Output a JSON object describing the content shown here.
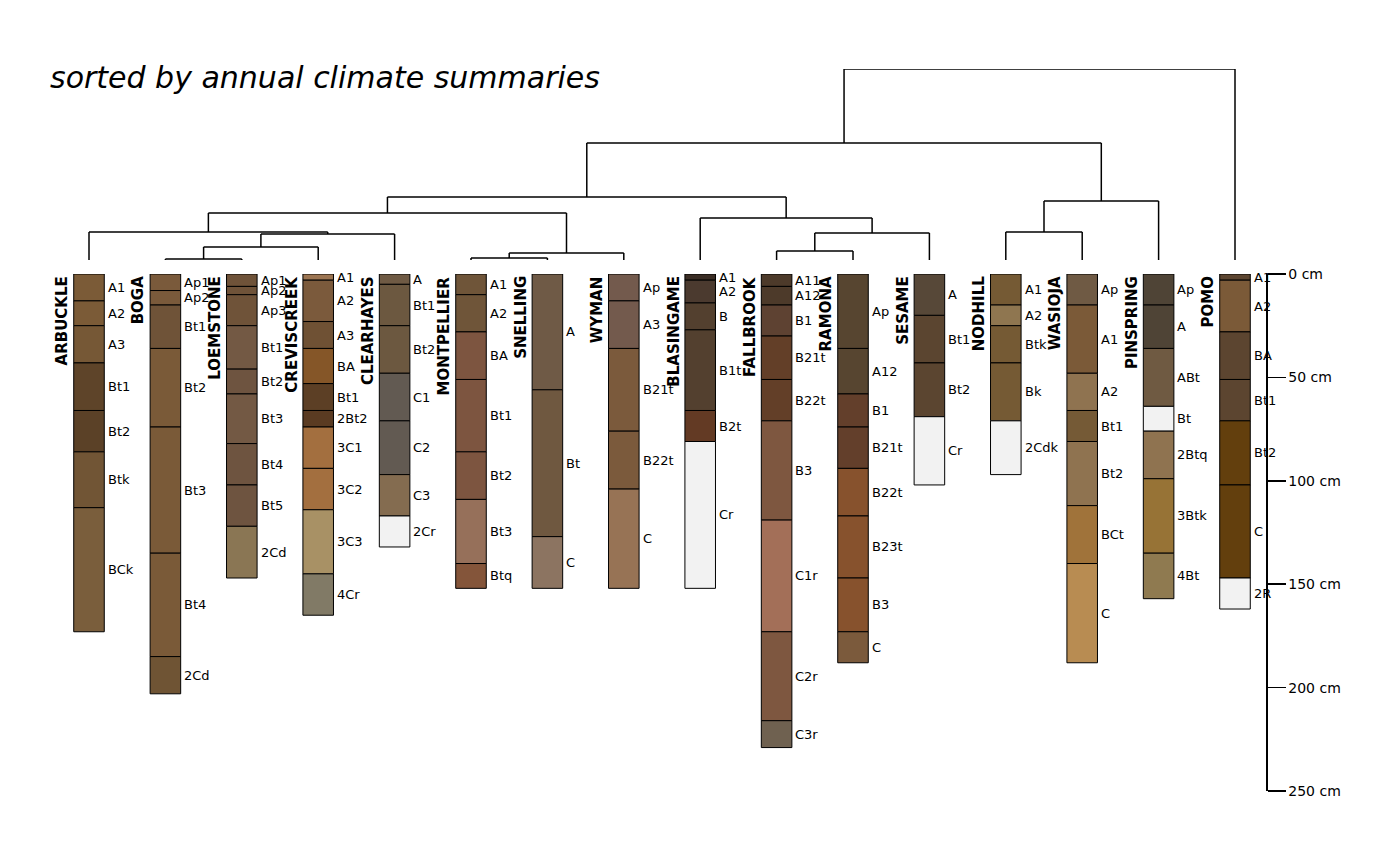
{
  "chart_data": {
    "type": "soil_profiles",
    "title": "sorted by annual climate summaries",
    "ylim": [
      250,
      0
    ],
    "yticks": [
      {
        "value": 0,
        "label": "0 cm"
      },
      {
        "value": 50,
        "label": "50 cm"
      },
      {
        "value": 100,
        "label": "100 cm"
      },
      {
        "value": 150,
        "label": "150 cm"
      },
      {
        "value": 200,
        "label": "200 cm"
      },
      {
        "value": 250,
        "label": "250 cm"
      }
    ],
    "tick_labels": "y",
    "grid": false,
    "profiles": [
      {
        "name": "ARBUCKLE",
        "horizons": [
          {
            "name": "A1",
            "top": 0,
            "bottom": 13,
            "color": "#7b5b37"
          },
          {
            "name": "A2",
            "top": 13,
            "bottom": 25,
            "color": "#7b5b37"
          },
          {
            "name": "A3",
            "top": 25,
            "bottom": 43,
            "color": "#765836"
          },
          {
            "name": "Bt1",
            "top": 43,
            "bottom": 66,
            "color": "#5e4429"
          },
          {
            "name": "Bt2",
            "top": 66,
            "bottom": 86,
            "color": "#5b4127"
          },
          {
            "name": "Btk",
            "top": 86,
            "bottom": 113,
            "color": "#715535"
          },
          {
            "name": "BCk",
            "top": 113,
            "bottom": 173,
            "color": "#7a5e3c"
          }
        ]
      },
      {
        "name": "BOGA",
        "horizons": [
          {
            "name": "Ap1",
            "top": 0,
            "bottom": 8,
            "color": "#7a5a3b"
          },
          {
            "name": "Ap2",
            "top": 8,
            "bottom": 15,
            "color": "#7a5a3b"
          },
          {
            "name": "Bt1",
            "top": 15,
            "bottom": 36,
            "color": "#6f5338"
          },
          {
            "name": "Bt2",
            "top": 36,
            "bottom": 74,
            "color": "#7a5a38"
          },
          {
            "name": "Bt3",
            "top": 74,
            "bottom": 135,
            "color": "#7a5a38"
          },
          {
            "name": "Bt4",
            "top": 135,
            "bottom": 185,
            "color": "#7a5a38"
          },
          {
            "name": "2Cd",
            "top": 185,
            "bottom": 203,
            "color": "#6f5434"
          }
        ]
      },
      {
        "name": "LOEMSTONE",
        "horizons": [
          {
            "name": "Ap1",
            "top": 0,
            "bottom": 6,
            "color": "#6f5339"
          },
          {
            "name": "Ap2",
            "top": 6,
            "bottom": 10,
            "color": "#6f5339"
          },
          {
            "name": "Ap3",
            "top": 10,
            "bottom": 25,
            "color": "#6f5339"
          },
          {
            "name": "Bt1",
            "top": 25,
            "bottom": 46,
            "color": "#735944"
          },
          {
            "name": "Bt2",
            "top": 46,
            "bottom": 58,
            "color": "#6e5440"
          },
          {
            "name": "Bt3",
            "top": 58,
            "bottom": 82,
            "color": "#735944"
          },
          {
            "name": "Bt4",
            "top": 82,
            "bottom": 102,
            "color": "#6e5440"
          },
          {
            "name": "Bt5",
            "top": 102,
            "bottom": 122,
            "color": "#6e5440"
          },
          {
            "name": "2Cd",
            "top": 122,
            "bottom": 147,
            "color": "#8a7654"
          }
        ]
      },
      {
        "name": "CREVISCREEK",
        "horizons": [
          {
            "name": "A1",
            "top": 0,
            "bottom": 3,
            "color": "#9c7552"
          },
          {
            "name": "A2",
            "top": 3,
            "bottom": 23,
            "color": "#7b5a3c"
          },
          {
            "name": "A3",
            "top": 23,
            "bottom": 36,
            "color": "#6f5134"
          },
          {
            "name": "BA",
            "top": 36,
            "bottom": 53,
            "color": "#855628"
          },
          {
            "name": "Bt1",
            "top": 53,
            "bottom": 66,
            "color": "#5c3f25"
          },
          {
            "name": "2Bt2",
            "top": 66,
            "bottom": 74,
            "color": "#5a3b22"
          },
          {
            "name": "3C1",
            "top": 74,
            "bottom": 94,
            "color": "#a36f3f"
          },
          {
            "name": "3C2",
            "top": 94,
            "bottom": 114,
            "color": "#a36f3f"
          },
          {
            "name": "3C3",
            "top": 114,
            "bottom": 145,
            "color": "#a89165"
          },
          {
            "name": "4Cr",
            "top": 145,
            "bottom": 165,
            "color": "#817a66"
          }
        ]
      },
      {
        "name": "CLEARHAYES",
        "horizons": [
          {
            "name": "A",
            "top": 0,
            "bottom": 5,
            "color": "#6f5a44"
          },
          {
            "name": "Bt1",
            "top": 5,
            "bottom": 25,
            "color": "#6c5840"
          },
          {
            "name": "Bt2",
            "top": 25,
            "bottom": 48,
            "color": "#6c5840"
          },
          {
            "name": "C1",
            "top": 48,
            "bottom": 71,
            "color": "#625a52"
          },
          {
            "name": "C2",
            "top": 71,
            "bottom": 97,
            "color": "#625a52"
          },
          {
            "name": "C3",
            "top": 97,
            "bottom": 117,
            "color": "#846c50"
          },
          {
            "name": "2Cr",
            "top": 117,
            "bottom": 132,
            "color": "#f2f2f2"
          }
        ]
      },
      {
        "name": "MONTPELLIER",
        "horizons": [
          {
            "name": "A1",
            "top": 0,
            "bottom": 10,
            "color": "#6f5539"
          },
          {
            "name": "A2",
            "top": 10,
            "bottom": 28,
            "color": "#6f5539"
          },
          {
            "name": "BA",
            "top": 28,
            "bottom": 51,
            "color": "#7d5540"
          },
          {
            "name": "Bt1",
            "top": 51,
            "bottom": 86,
            "color": "#7d5540"
          },
          {
            "name": "Bt2",
            "top": 86,
            "bottom": 109,
            "color": "#7d5540"
          },
          {
            "name": "Bt3",
            "top": 109,
            "bottom": 140,
            "color": "#96705a"
          },
          {
            "name": "Btq",
            "top": 140,
            "bottom": 152,
            "color": "#84553a"
          }
        ]
      },
      {
        "name": "SNELLING",
        "horizons": [
          {
            "name": "A",
            "top": 0,
            "bottom": 56,
            "color": "#6f5a46"
          },
          {
            "name": "Bt",
            "top": 56,
            "bottom": 127,
            "color": "#6f5840"
          },
          {
            "name": "C",
            "top": 127,
            "bottom": 152,
            "color": "#8c7461"
          }
        ]
      },
      {
        "name": "WYMAN",
        "horizons": [
          {
            "name": "Ap",
            "top": 0,
            "bottom": 13,
            "color": "#735a4d"
          },
          {
            "name": "A3",
            "top": 13,
            "bottom": 36,
            "color": "#735a4d"
          },
          {
            "name": "B21t",
            "top": 36,
            "bottom": 76,
            "color": "#7b5a3c"
          },
          {
            "name": "B22t",
            "top": 76,
            "bottom": 104,
            "color": "#7b5a3c"
          },
          {
            "name": "C",
            "top": 104,
            "bottom": 152,
            "color": "#977355"
          }
        ]
      },
      {
        "name": "BLASINGAME",
        "horizons": [
          {
            "name": "A1",
            "top": 0,
            "bottom": 3,
            "color": "#3a2d24"
          },
          {
            "name": "A2",
            "top": 3,
            "bottom": 14,
            "color": "#4b3a2f"
          },
          {
            "name": "B",
            "top": 14,
            "bottom": 27,
            "color": "#53402f"
          },
          {
            "name": "B1t",
            "top": 27,
            "bottom": 66,
            "color": "#53402f"
          },
          {
            "name": "B2t",
            "top": 66,
            "bottom": 81,
            "color": "#633a24"
          },
          {
            "name": "Cr",
            "top": 81,
            "bottom": 152,
            "color": "#f2f2f2"
          }
        ]
      },
      {
        "name": "FALLBROOK",
        "horizons": [
          {
            "name": "A11",
            "top": 0,
            "bottom": 6,
            "color": "#4d3a2a"
          },
          {
            "name": "A12",
            "top": 6,
            "bottom": 15,
            "color": "#4d3a2a"
          },
          {
            "name": "B1",
            "top": 15,
            "bottom": 30,
            "color": "#5e4232"
          },
          {
            "name": "B21t",
            "top": 30,
            "bottom": 51,
            "color": "#633f28"
          },
          {
            "name": "B22t",
            "top": 51,
            "bottom": 71,
            "color": "#633f28"
          },
          {
            "name": "B3",
            "top": 71,
            "bottom": 119,
            "color": "#7e5740"
          },
          {
            "name": "C1r",
            "top": 119,
            "bottom": 173,
            "color": "#a36f58"
          },
          {
            "name": "C2r",
            "top": 173,
            "bottom": 216,
            "color": "#7e5740"
          },
          {
            "name": "C3r",
            "top": 216,
            "bottom": 229,
            "color": "#6f6150"
          }
        ]
      },
      {
        "name": "RAMONA",
        "horizons": [
          {
            "name": "Ap",
            "top": 0,
            "bottom": 36,
            "color": "#574530"
          },
          {
            "name": "A12",
            "top": 36,
            "bottom": 58,
            "color": "#574530"
          },
          {
            "name": "B1",
            "top": 58,
            "bottom": 74,
            "color": "#633f2b"
          },
          {
            "name": "B21t",
            "top": 74,
            "bottom": 94,
            "color": "#633f2b"
          },
          {
            "name": "B22t",
            "top": 94,
            "bottom": 117,
            "color": "#87522d"
          },
          {
            "name": "B23t",
            "top": 117,
            "bottom": 147,
            "color": "#87522d"
          },
          {
            "name": "B3",
            "top": 147,
            "bottom": 173,
            "color": "#87522d"
          },
          {
            "name": "C",
            "top": 173,
            "bottom": 188,
            "color": "#7b5a3c"
          }
        ]
      },
      {
        "name": "SESAME",
        "horizons": [
          {
            "name": "A",
            "top": 0,
            "bottom": 20,
            "color": "#574838"
          },
          {
            "name": "Bt1",
            "top": 20,
            "bottom": 43,
            "color": "#5b4530"
          },
          {
            "name": "Bt2",
            "top": 43,
            "bottom": 69,
            "color": "#5b4530"
          },
          {
            "name": "Cr",
            "top": 69,
            "bottom": 102,
            "color": "#f2f2f2"
          }
        ]
      },
      {
        "name": "NODHILL",
        "horizons": [
          {
            "name": "A1",
            "top": 0,
            "bottom": 15,
            "color": "#755a34"
          },
          {
            "name": "A2",
            "top": 15,
            "bottom": 25,
            "color": "#8f7650"
          },
          {
            "name": "Btk",
            "top": 25,
            "bottom": 43,
            "color": "#755a34"
          },
          {
            "name": "Bk",
            "top": 43,
            "bottom": 71,
            "color": "#755a34"
          },
          {
            "name": "2Cdk",
            "top": 71,
            "bottom": 97,
            "color": "#f2f2f2"
          }
        ]
      },
      {
        "name": "WASIOJA",
        "horizons": [
          {
            "name": "Ap",
            "top": 0,
            "bottom": 15,
            "color": "#6f5a44"
          },
          {
            "name": "A1",
            "top": 15,
            "bottom": 48,
            "color": "#7b5a38"
          },
          {
            "name": "A2",
            "top": 48,
            "bottom": 66,
            "color": "#8f7350"
          },
          {
            "name": "Bt1",
            "top": 66,
            "bottom": 81,
            "color": "#755a36"
          },
          {
            "name": "Bt2",
            "top": 81,
            "bottom": 112,
            "color": "#8f7350"
          },
          {
            "name": "BCt",
            "top": 112,
            "bottom": 140,
            "color": "#a0733a"
          },
          {
            "name": "C",
            "top": 140,
            "bottom": 188,
            "color": "#b88c52"
          }
        ]
      },
      {
        "name": "PINSPRING",
        "horizons": [
          {
            "name": "Ap",
            "top": 0,
            "bottom": 15,
            "color": "#4f4436"
          },
          {
            "name": "A",
            "top": 15,
            "bottom": 36,
            "color": "#4f4436"
          },
          {
            "name": "ABt",
            "top": 36,
            "bottom": 64,
            "color": "#6f5a42"
          },
          {
            "name": "Bt",
            "top": 64,
            "bottom": 76,
            "color": "#f2f2f2"
          },
          {
            "name": "2Btq",
            "top": 76,
            "bottom": 99,
            "color": "#8f7350"
          },
          {
            "name": "3Btk",
            "top": 99,
            "bottom": 135,
            "color": "#977336"
          },
          {
            "name": "4Bt",
            "top": 135,
            "bottom": 157,
            "color": "#8f7a50"
          }
        ]
      },
      {
        "name": "POMO",
        "horizons": [
          {
            "name": "A1",
            "top": 0,
            "bottom": 3,
            "color": "#5c4530"
          },
          {
            "name": "A2",
            "top": 3,
            "bottom": 28,
            "color": "#7b5a38"
          },
          {
            "name": "BA",
            "top": 28,
            "bottom": 51,
            "color": "#5c4530"
          },
          {
            "name": "Bt1",
            "top": 51,
            "bottom": 71,
            "color": "#5c4530"
          },
          {
            "name": "Bt2",
            "top": 71,
            "bottom": 102,
            "color": "#633f0d"
          },
          {
            "name": "C",
            "top": 102,
            "bottom": 147,
            "color": "#633f0d"
          },
          {
            "name": "2R",
            "top": 147,
            "bottom": 162,
            "color": "#f2f2f2"
          }
        ]
      }
    ],
    "dendrogram": {
      "height": 191,
      "children": [
        {
          "height": 117,
          "children": [
            {
              "height": 63,
              "children": [
                {
                  "height": 47,
                  "children": [
                    {
                      "height": 28,
                      "children": [
                        "ARBUCKLE",
                        {
                          "height": 26,
                          "children": [
                            {
                              "height": 13,
                              "children": [
                                {
                                  "height": 1,
                                  "children": [
                                    "BOGA",
                                    "LOEMSTONE"
                                  ]
                                },
                                "CREVISCREEK"
                              ]
                            },
                            "CLEARHAYES"
                          ]
                        }
                      ]
                    },
                    {
                      "height": 7,
                      "children": [
                        {
                          "height": 2,
                          "children": [
                            "MONTPELLIER",
                            "SNELLING"
                          ]
                        },
                        "WYMAN"
                      ]
                    }
                  ]
                },
                {
                  "height": 42,
                  "children": [
                    "BLASINGAME",
                    {
                      "height": 27,
                      "children": [
                        {
                          "height": 9,
                          "children": [
                            "FALLBROOK",
                            "RAMONA"
                          ]
                        },
                        "SESAME"
                      ]
                    }
                  ]
                }
              ]
            },
            {
              "height": 59,
              "children": [
                {
                  "height": 28,
                  "children": [
                    "NODHILL",
                    "WASIOJA"
                  ]
                },
                "PINSPRING"
              ]
            }
          ]
        },
        "POMO"
      ]
    }
  }
}
